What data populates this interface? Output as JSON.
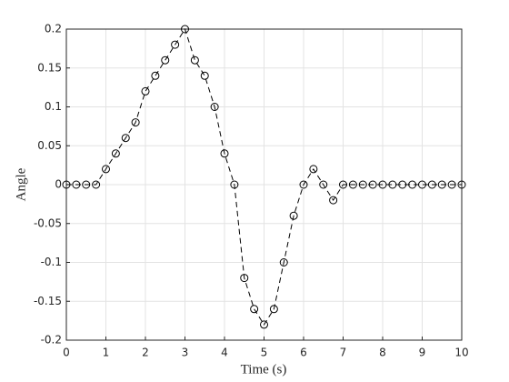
{
  "chart_data": {
    "type": "line",
    "xlabel": "Time (s)",
    "ylabel": "Angle",
    "x": [
      0,
      0.25,
      0.5,
      0.75,
      1,
      1.25,
      1.5,
      1.75,
      2,
      2.25,
      2.5,
      2.75,
      3,
      3.25,
      3.5,
      3.75,
      4,
      4.25,
      4.5,
      4.75,
      5,
      5.25,
      5.5,
      5.75,
      6,
      6.25,
      6.5,
      6.75,
      7,
      7.25,
      7.5,
      7.75,
      8,
      8.25,
      8.5,
      8.75,
      9,
      9.25,
      9.5,
      9.75,
      10
    ],
    "values": [
      0,
      0,
      0,
      0,
      0.02,
      0.04,
      0.06,
      0.08,
      0.12,
      0.14,
      0.16,
      0.18,
      0.2,
      0.16,
      0.14,
      0.1,
      0.04,
      0,
      -0.12,
      -0.16,
      -0.18,
      -0.16,
      -0.1,
      -0.04,
      0,
      0.02,
      0,
      -0.02,
      0,
      0,
      0,
      0,
      0,
      0,
      0,
      0,
      0,
      0,
      0,
      0,
      0
    ],
    "color": "#000000",
    "line_style": "dashed",
    "marker": "circle",
    "xlim": [
      0,
      10
    ],
    "xticks": [
      0,
      1,
      2,
      3,
      4,
      5,
      6,
      7,
      8,
      9,
      10
    ],
    "ylim": [
      -0.2,
      0.2
    ],
    "yticks": [
      -0.2,
      -0.15,
      -0.1,
      -0.05,
      0,
      0.05,
      0.1,
      0.15,
      0.2
    ],
    "grid": true
  }
}
